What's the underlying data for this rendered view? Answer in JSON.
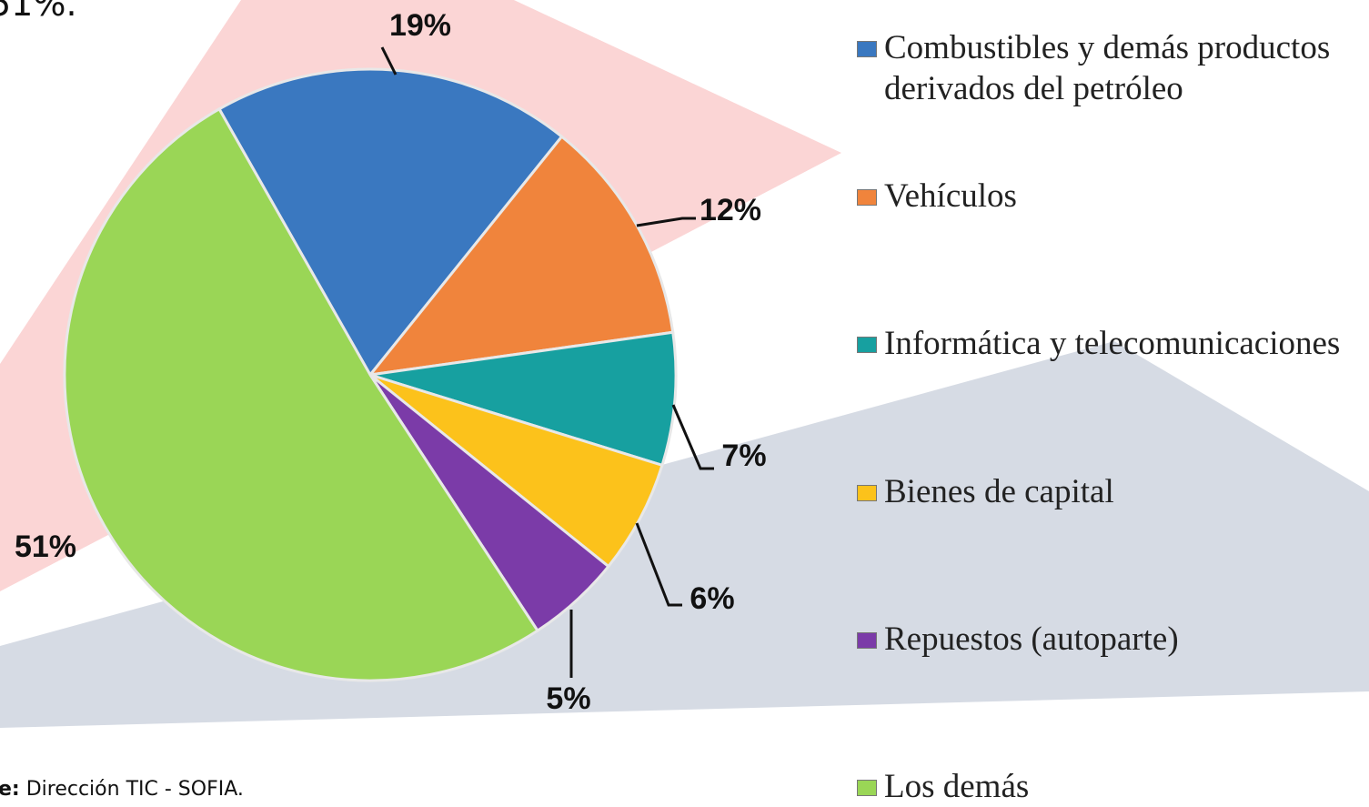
{
  "top_fragment": "51%.",
  "source_label": "e:",
  "source_text": "Dirección TIC - SOFIA.",
  "chart_data": {
    "type": "pie",
    "categories": [
      "Combustibles y demás productos derivados del petróleo",
      "Vehículos",
      "Informática y telecomunicaciones",
      "Bienes de capital",
      "Repuestos (autoparte)",
      "Los demás"
    ],
    "values": [
      19,
      12,
      7,
      6,
      5,
      51
    ],
    "value_labels": [
      "19%",
      "12%",
      "7%",
      "6%",
      "5%",
      "51%"
    ],
    "colors": [
      "#3a78c0",
      "#f0843c",
      "#17a0a0",
      "#fcc21b",
      "#7b3ba8",
      "#9ad656"
    ],
    "legend": "right"
  }
}
